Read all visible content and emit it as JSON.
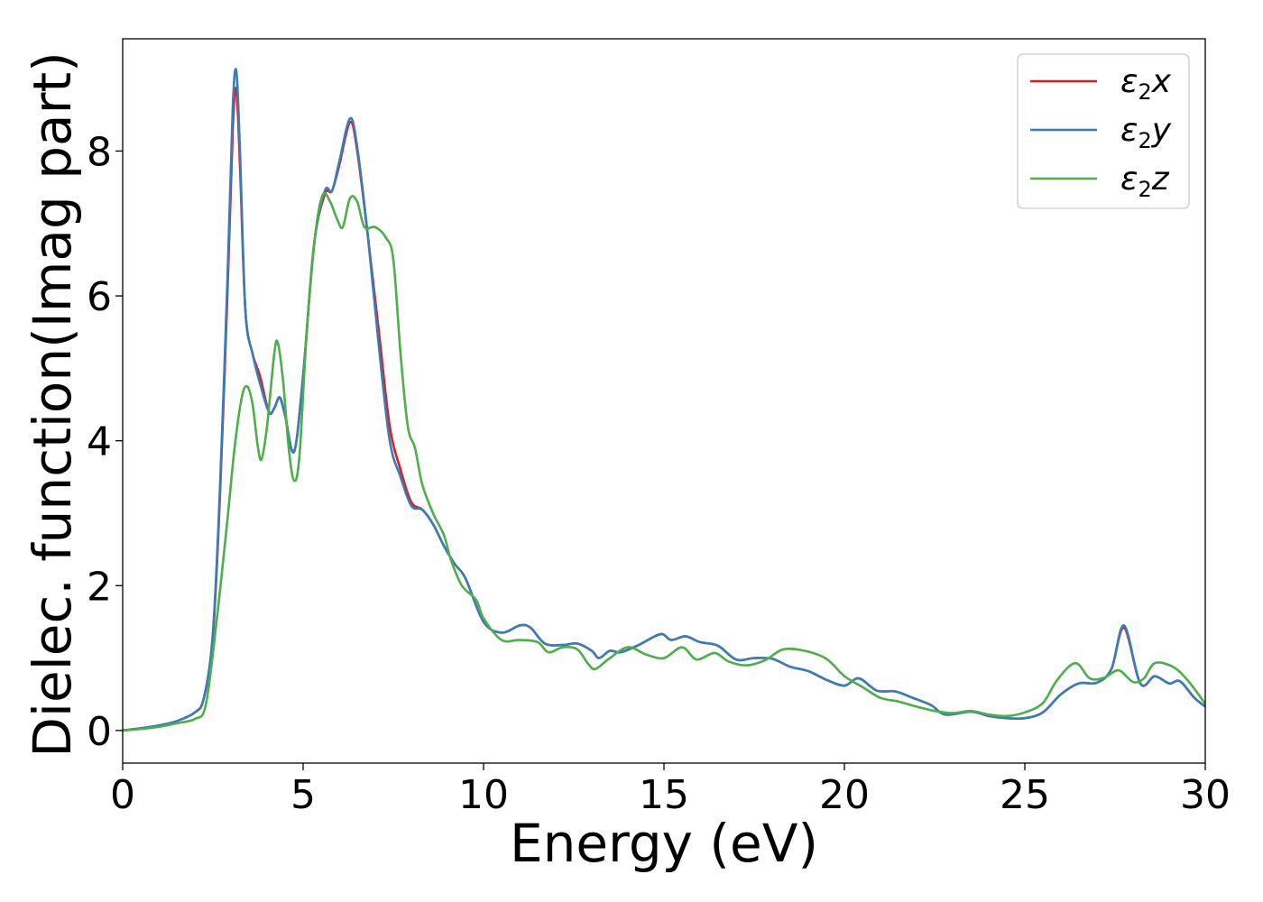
{
  "chart_data": {
    "type": "line",
    "title": "",
    "xlabel": "Energy (eV)",
    "ylabel": "Dielec. function(Imag part)",
    "xlim": [
      0,
      30
    ],
    "ylim": [
      -0.45,
      9.55
    ],
    "xticks": [
      0,
      5,
      10,
      15,
      20,
      25,
      30
    ],
    "yticks": [
      0,
      2,
      4,
      6,
      8
    ],
    "grid": false,
    "legend_position": "top-right",
    "series": [
      {
        "name": "ε₂x",
        "legend_symbol": "ε",
        "legend_sub": "2",
        "legend_axis": "x",
        "color": "#e41a1c",
        "points": [
          [
            0,
            0
          ],
          [
            0.5,
            0.03
          ],
          [
            1,
            0.07
          ],
          [
            1.5,
            0.13
          ],
          [
            2,
            0.25
          ],
          [
            2.25,
            0.45
          ],
          [
            2.5,
            1.3
          ],
          [
            2.7,
            3.3
          ],
          [
            2.9,
            6.0
          ],
          [
            3.05,
            8.3
          ],
          [
            3.15,
            8.85
          ],
          [
            3.25,
            7.8
          ],
          [
            3.4,
            5.8
          ],
          [
            3.6,
            5.2
          ],
          [
            3.8,
            4.9
          ],
          [
            4.05,
            4.4
          ],
          [
            4.2,
            4.45
          ],
          [
            4.35,
            4.6
          ],
          [
            4.5,
            4.35
          ],
          [
            4.75,
            3.85
          ],
          [
            5.0,
            4.9
          ],
          [
            5.3,
            6.7
          ],
          [
            5.6,
            7.4
          ],
          [
            5.8,
            7.45
          ],
          [
            6.0,
            7.8
          ],
          [
            6.3,
            8.4
          ],
          [
            6.5,
            8.0
          ],
          [
            6.8,
            6.8
          ],
          [
            7.1,
            5.5
          ],
          [
            7.4,
            4.2
          ],
          [
            7.7,
            3.6
          ],
          [
            8.0,
            3.15
          ],
          [
            8.3,
            3.05
          ],
          [
            8.6,
            2.85
          ],
          [
            8.9,
            2.55
          ],
          [
            9.2,
            2.3
          ],
          [
            9.5,
            2.1
          ],
          [
            10.0,
            1.5
          ],
          [
            10.5,
            1.35
          ],
          [
            11.0,
            1.45
          ],
          [
            11.3,
            1.42
          ],
          [
            11.7,
            1.2
          ],
          [
            12.2,
            1.18
          ],
          [
            12.6,
            1.2
          ],
          [
            13.0,
            1.1
          ],
          [
            13.2,
            1.0
          ],
          [
            13.5,
            1.1
          ],
          [
            13.8,
            1.08
          ],
          [
            14.3,
            1.18
          ],
          [
            14.9,
            1.33
          ],
          [
            15.2,
            1.25
          ],
          [
            15.6,
            1.3
          ],
          [
            16.0,
            1.22
          ],
          [
            16.5,
            1.17
          ],
          [
            17.0,
            0.98
          ],
          [
            17.5,
            1.0
          ],
          [
            18.0,
            0.99
          ],
          [
            18.5,
            0.88
          ],
          [
            19.0,
            0.82
          ],
          [
            19.5,
            0.7
          ],
          [
            20.0,
            0.62
          ],
          [
            20.4,
            0.72
          ],
          [
            20.9,
            0.55
          ],
          [
            21.4,
            0.54
          ],
          [
            21.9,
            0.45
          ],
          [
            22.4,
            0.35
          ],
          [
            22.8,
            0.22
          ],
          [
            23.5,
            0.26
          ],
          [
            24.0,
            0.2
          ],
          [
            24.5,
            0.17
          ],
          [
            25.0,
            0.17
          ],
          [
            25.5,
            0.25
          ],
          [
            26.0,
            0.5
          ],
          [
            26.5,
            0.65
          ],
          [
            27.0,
            0.66
          ],
          [
            27.4,
            0.85
          ],
          [
            27.75,
            1.42
          ],
          [
            28.2,
            0.65
          ],
          [
            28.6,
            0.75
          ],
          [
            29.0,
            0.65
          ],
          [
            29.3,
            0.68
          ],
          [
            29.7,
            0.45
          ],
          [
            30.0,
            0.33
          ]
        ]
      },
      {
        "name": "ε₂y",
        "legend_symbol": "ε",
        "legend_sub": "2",
        "legend_axis": "y",
        "color": "#377eb8",
        "points": [
          [
            0,
            0
          ],
          [
            0.5,
            0.03
          ],
          [
            1,
            0.07
          ],
          [
            1.5,
            0.13
          ],
          [
            2,
            0.25
          ],
          [
            2.25,
            0.45
          ],
          [
            2.5,
            1.35
          ],
          [
            2.7,
            3.4
          ],
          [
            2.9,
            6.2
          ],
          [
            3.05,
            8.6
          ],
          [
            3.15,
            9.1
          ],
          [
            3.25,
            8.0
          ],
          [
            3.4,
            5.8
          ],
          [
            3.6,
            5.2
          ],
          [
            3.8,
            4.8
          ],
          [
            4.05,
            4.4
          ],
          [
            4.2,
            4.45
          ],
          [
            4.35,
            4.6
          ],
          [
            4.5,
            4.35
          ],
          [
            4.75,
            3.85
          ],
          [
            5.0,
            4.9
          ],
          [
            5.3,
            6.7
          ],
          [
            5.6,
            7.45
          ],
          [
            5.8,
            7.45
          ],
          [
            6.0,
            7.85
          ],
          [
            6.3,
            8.45
          ],
          [
            6.5,
            8.05
          ],
          [
            6.8,
            6.8
          ],
          [
            7.1,
            5.3
          ],
          [
            7.4,
            4.0
          ],
          [
            7.7,
            3.5
          ],
          [
            8.0,
            3.1
          ],
          [
            8.3,
            3.05
          ],
          [
            8.6,
            2.85
          ],
          [
            8.9,
            2.55
          ],
          [
            9.2,
            2.3
          ],
          [
            9.5,
            2.1
          ],
          [
            10.0,
            1.5
          ],
          [
            10.5,
            1.35
          ],
          [
            11.0,
            1.45
          ],
          [
            11.3,
            1.42
          ],
          [
            11.7,
            1.2
          ],
          [
            12.2,
            1.18
          ],
          [
            12.6,
            1.2
          ],
          [
            13.0,
            1.1
          ],
          [
            13.2,
            1.0
          ],
          [
            13.5,
            1.1
          ],
          [
            13.8,
            1.08
          ],
          [
            14.3,
            1.18
          ],
          [
            14.9,
            1.33
          ],
          [
            15.2,
            1.25
          ],
          [
            15.6,
            1.3
          ],
          [
            16.0,
            1.22
          ],
          [
            16.5,
            1.17
          ],
          [
            17.0,
            0.98
          ],
          [
            17.5,
            1.0
          ],
          [
            18.0,
            0.99
          ],
          [
            18.5,
            0.88
          ],
          [
            19.0,
            0.82
          ],
          [
            19.5,
            0.7
          ],
          [
            20.0,
            0.62
          ],
          [
            20.4,
            0.72
          ],
          [
            20.9,
            0.55
          ],
          [
            21.4,
            0.54
          ],
          [
            21.9,
            0.45
          ],
          [
            22.4,
            0.35
          ],
          [
            22.8,
            0.22
          ],
          [
            23.5,
            0.26
          ],
          [
            24.0,
            0.2
          ],
          [
            24.5,
            0.17
          ],
          [
            25.0,
            0.17
          ],
          [
            25.5,
            0.25
          ],
          [
            26.0,
            0.5
          ],
          [
            26.5,
            0.65
          ],
          [
            27.0,
            0.66
          ],
          [
            27.4,
            0.85
          ],
          [
            27.75,
            1.45
          ],
          [
            28.2,
            0.65
          ],
          [
            28.6,
            0.75
          ],
          [
            29.0,
            0.65
          ],
          [
            29.3,
            0.68
          ],
          [
            29.7,
            0.45
          ],
          [
            30.0,
            0.33
          ]
        ]
      },
      {
        "name": "ε₂z",
        "legend_symbol": "ε",
        "legend_sub": "2",
        "legend_axis": "z",
        "color": "#4daf4a",
        "points": [
          [
            0,
            0
          ],
          [
            0.5,
            0.02
          ],
          [
            1,
            0.05
          ],
          [
            1.5,
            0.1
          ],
          [
            2,
            0.16
          ],
          [
            2.3,
            0.35
          ],
          [
            2.6,
            1.5
          ],
          [
            2.9,
            2.9
          ],
          [
            3.1,
            3.9
          ],
          [
            3.3,
            4.6
          ],
          [
            3.45,
            4.75
          ],
          [
            3.6,
            4.5
          ],
          [
            3.75,
            3.9
          ],
          [
            3.85,
            3.75
          ],
          [
            4.0,
            4.2
          ],
          [
            4.2,
            5.2
          ],
          [
            4.3,
            5.35
          ],
          [
            4.45,
            4.8
          ],
          [
            4.6,
            3.9
          ],
          [
            4.75,
            3.45
          ],
          [
            4.9,
            3.8
          ],
          [
            5.1,
            5.5
          ],
          [
            5.35,
            6.9
          ],
          [
            5.55,
            7.4
          ],
          [
            5.75,
            7.3
          ],
          [
            5.95,
            7.05
          ],
          [
            6.1,
            6.95
          ],
          [
            6.3,
            7.35
          ],
          [
            6.5,
            7.3
          ],
          [
            6.7,
            6.95
          ],
          [
            7.0,
            6.95
          ],
          [
            7.3,
            6.8
          ],
          [
            7.5,
            6.5
          ],
          [
            7.7,
            5.2
          ],
          [
            7.9,
            4.2
          ],
          [
            8.1,
            3.9
          ],
          [
            8.3,
            3.4
          ],
          [
            8.6,
            3.0
          ],
          [
            8.9,
            2.7
          ],
          [
            9.1,
            2.35
          ],
          [
            9.4,
            2.0
          ],
          [
            9.8,
            1.8
          ],
          [
            10.0,
            1.55
          ],
          [
            10.5,
            1.25
          ],
          [
            11.0,
            1.25
          ],
          [
            11.5,
            1.22
          ],
          [
            11.8,
            1.08
          ],
          [
            12.2,
            1.15
          ],
          [
            12.6,
            1.12
          ],
          [
            12.9,
            0.92
          ],
          [
            13.1,
            0.85
          ],
          [
            13.5,
            1.0
          ],
          [
            14.0,
            1.15
          ],
          [
            14.5,
            1.05
          ],
          [
            15.0,
            1.0
          ],
          [
            15.5,
            1.15
          ],
          [
            15.9,
            0.98
          ],
          [
            16.4,
            1.07
          ],
          [
            16.8,
            0.95
          ],
          [
            17.3,
            0.9
          ],
          [
            17.8,
            0.97
          ],
          [
            18.3,
            1.12
          ],
          [
            18.9,
            1.1
          ],
          [
            19.5,
            0.99
          ],
          [
            20.0,
            0.75
          ],
          [
            20.5,
            0.6
          ],
          [
            21.0,
            0.45
          ],
          [
            21.5,
            0.4
          ],
          [
            22.0,
            0.33
          ],
          [
            22.5,
            0.27
          ],
          [
            23.0,
            0.24
          ],
          [
            23.5,
            0.27
          ],
          [
            24.0,
            0.22
          ],
          [
            24.5,
            0.2
          ],
          [
            25.0,
            0.25
          ],
          [
            25.5,
            0.38
          ],
          [
            25.9,
            0.7
          ],
          [
            26.4,
            0.93
          ],
          [
            26.8,
            0.72
          ],
          [
            27.2,
            0.73
          ],
          [
            27.6,
            0.83
          ],
          [
            28.0,
            0.67
          ],
          [
            28.3,
            0.72
          ],
          [
            28.6,
            0.93
          ],
          [
            29.1,
            0.88
          ],
          [
            29.5,
            0.7
          ],
          [
            30.0,
            0.37
          ]
        ]
      }
    ]
  }
}
